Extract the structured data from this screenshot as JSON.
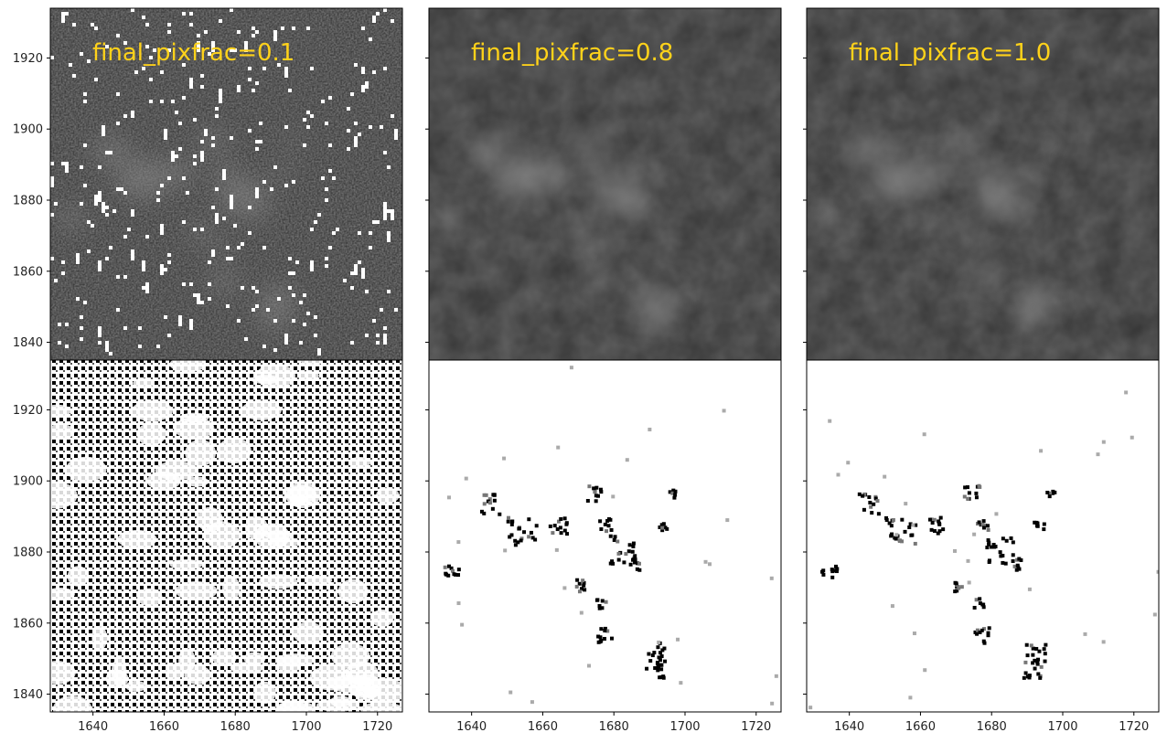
{
  "chart_data": {
    "type": "heatmap",
    "layout": "2 rows x 3 columns, shared x and y axes",
    "x_axis": {
      "range": [
        1628,
        1727
      ],
      "ticks": [
        1640,
        1660,
        1680,
        1700,
        1720
      ]
    },
    "y_axis": {
      "range": [
        1835,
        1934
      ],
      "ticks": [
        1840,
        1860,
        1880,
        1900,
        1920
      ]
    },
    "colormap": "gray",
    "title_color": "#ffd21a",
    "panels": [
      {
        "row": 0,
        "col": 0,
        "title": "final_pixfrac=0.1",
        "content": "science image, noisy dark background with bright white dead pixels"
      },
      {
        "row": 0,
        "col": 1,
        "title": "final_pixfrac=0.8",
        "content": "science image, smooth diffuse emission"
      },
      {
        "row": 0,
        "col": 2,
        "title": "final_pixfrac=1.0",
        "content": "science image, smooth diffuse emission"
      },
      {
        "row": 1,
        "col": 0,
        "title": "",
        "content": "weight map, dense black pixel pattern"
      },
      {
        "row": 1,
        "col": 1,
        "title": "",
        "content": "weight map, mostly white with sparse black blobs"
      },
      {
        "row": 1,
        "col": 2,
        "title": "",
        "content": "weight map, mostly white with sparse black blobs"
      }
    ],
    "blobs": [
      [
        1634,
        1875,
        1.2
      ],
      [
        1645,
        1894,
        1.6
      ],
      [
        1654,
        1886,
        2.4
      ],
      [
        1664,
        1888,
        1.4
      ],
      [
        1674,
        1897,
        1.2
      ],
      [
        1677,
        1888,
        1.0
      ],
      [
        1682,
        1881,
        2.2
      ],
      [
        1686,
        1877,
        1.0
      ],
      [
        1670,
        1871,
        1.0
      ],
      [
        1676,
        1866,
        0.8
      ],
      [
        1677,
        1857,
        1.2
      ],
      [
        1692,
        1852,
        1.6
      ],
      [
        1691,
        1847,
        1.4
      ],
      [
        1693,
        1888,
        0.8
      ],
      [
        1696,
        1897,
        0.7
      ]
    ]
  }
}
